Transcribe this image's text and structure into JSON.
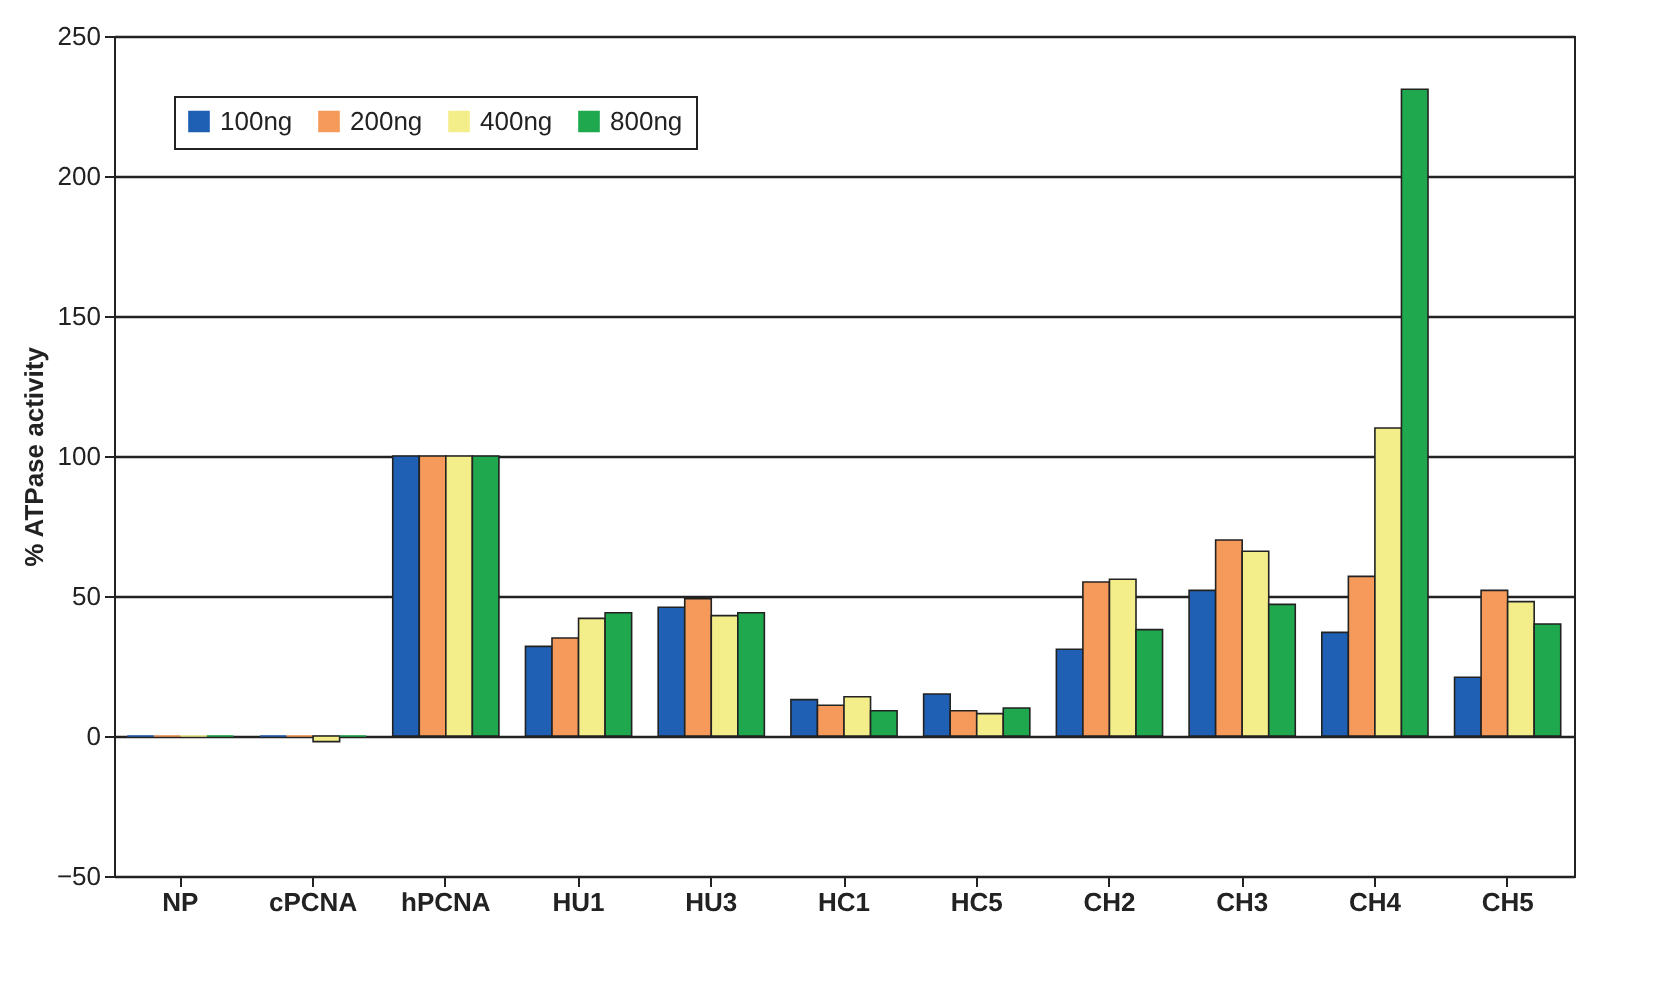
{
  "chart_data": {
    "type": "bar",
    "ylabel": "% ATPase activity",
    "categories": [
      "NP",
      "cPCNA",
      "hPCNA",
      "HU1",
      "HU3",
      "HC1",
      "HC5",
      "CH2",
      "CH3",
      "CH4",
      "CH5"
    ],
    "series": [
      {
        "name": "100ng",
        "color": "#1f5fb4",
        "values": [
          0,
          0,
          100,
          32,
          46,
          13,
          15,
          31,
          52,
          37,
          21
        ]
      },
      {
        "name": "200ng",
        "color": "#f59a5a",
        "values": [
          0,
          0,
          100,
          35,
          49,
          11,
          9,
          55,
          70,
          57,
          52
        ]
      },
      {
        "name": "400ng",
        "color": "#f3ee8a",
        "values": [
          0,
          -2,
          100,
          42,
          43,
          14,
          8,
          56,
          66,
          110,
          48
        ]
      },
      {
        "name": "800ng",
        "color": "#1fa84e",
        "values": [
          0,
          0,
          100,
          44,
          44,
          9,
          10,
          38,
          47,
          231,
          40
        ]
      }
    ],
    "ylim": [
      -50,
      250
    ],
    "yticks": [
      -50,
      0,
      50,
      100,
      150,
      200,
      250
    ],
    "grid": "y",
    "legend": "top left"
  }
}
